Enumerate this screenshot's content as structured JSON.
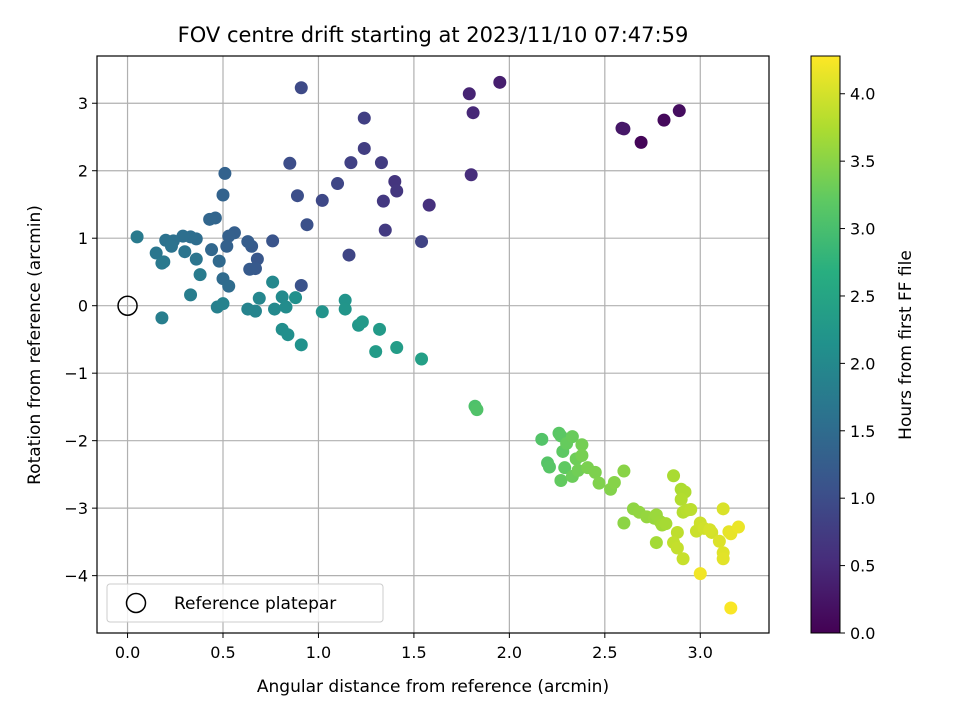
{
  "chart_data": {
    "type": "scatter",
    "title": "FOV centre drift starting at 2023/11/10 07:47:59",
    "xlabel": "Angular distance from reference (arcmin)",
    "ylabel": "Rotation from reference (arcmin)",
    "xlim": [
      -0.16,
      3.36
    ],
    "ylim": [
      -4.85,
      3.7
    ],
    "xticks": [
      0.0,
      0.5,
      1.0,
      1.5,
      2.0,
      2.5,
      3.0
    ],
    "xtick_labels": [
      "0.0",
      "0.5",
      "1.0",
      "1.5",
      "2.0",
      "2.5",
      "3.0"
    ],
    "yticks": [
      3,
      2,
      1,
      0,
      -1,
      -2,
      -3,
      -4
    ],
    "ytick_labels": [
      "3",
      "2",
      "1",
      "0",
      "−1",
      "−2",
      "−3",
      "−4"
    ],
    "grid": true,
    "legend": {
      "placement": "lower-left",
      "entries": [
        {
          "label": "Reference platepar",
          "marker": "hollow-circle"
        }
      ]
    },
    "reference_point": {
      "x": 0,
      "y": 0
    },
    "colorbar": {
      "label": "Hours from first FF file",
      "colormap": "viridis",
      "range": [
        0.0,
        4.28
      ],
      "ticks": [
        0.0,
        0.5,
        1.0,
        1.5,
        2.0,
        2.5,
        3.0,
        3.5,
        4.0
      ],
      "tick_labels": [
        "0.0",
        "0.5",
        "1.0",
        "1.5",
        "2.0",
        "2.5",
        "3.0",
        "3.5",
        "4.0"
      ]
    },
    "points": [
      {
        "x": 2.69,
        "y": 2.42,
        "c": 0.05
      },
      {
        "x": 2.81,
        "y": 2.75,
        "c": 0.1
      },
      {
        "x": 2.89,
        "y": 2.89,
        "c": 0.15
      },
      {
        "x": 2.59,
        "y": 2.63,
        "c": 0.25
      },
      {
        "x": 2.6,
        "y": 2.62,
        "c": 0.28
      },
      {
        "x": 1.95,
        "y": 3.31,
        "c": 0.35
      },
      {
        "x": 1.79,
        "y": 3.14,
        "c": 0.42
      },
      {
        "x": 1.81,
        "y": 2.86,
        "c": 0.48
      },
      {
        "x": 1.8,
        "y": 1.94,
        "c": 0.55
      },
      {
        "x": 1.58,
        "y": 1.49,
        "c": 0.6
      },
      {
        "x": 1.4,
        "y": 1.84,
        "c": 0.65
      },
      {
        "x": 1.41,
        "y": 1.7,
        "c": 0.68
      },
      {
        "x": 1.34,
        "y": 1.55,
        "c": 0.7
      },
      {
        "x": 1.35,
        "y": 1.12,
        "c": 0.72
      },
      {
        "x": 1.33,
        "y": 2.12,
        "c": 0.75
      },
      {
        "x": 1.24,
        "y": 2.33,
        "c": 0.78
      },
      {
        "x": 1.24,
        "y": 2.78,
        "c": 0.8
      },
      {
        "x": 1.17,
        "y": 2.12,
        "c": 0.82
      },
      {
        "x": 1.54,
        "y": 0.95,
        "c": 0.85
      },
      {
        "x": 1.16,
        "y": 0.75,
        "c": 0.88
      },
      {
        "x": 1.1,
        "y": 1.81,
        "c": 0.9
      },
      {
        "x": 1.02,
        "y": 1.56,
        "c": 0.92
      },
      {
        "x": 0.91,
        "y": 3.23,
        "c": 0.95
      },
      {
        "x": 0.85,
        "y": 2.11,
        "c": 1.0
      },
      {
        "x": 0.89,
        "y": 1.63,
        "c": 1.02
      },
      {
        "x": 0.94,
        "y": 1.2,
        "c": 1.05
      },
      {
        "x": 0.91,
        "y": 0.3,
        "c": 1.08
      },
      {
        "x": 0.76,
        "y": 0.96,
        "c": 1.1
      },
      {
        "x": 0.68,
        "y": 0.69,
        "c": 1.15
      },
      {
        "x": 0.67,
        "y": 0.55,
        "c": 1.18
      },
      {
        "x": 0.64,
        "y": 0.54,
        "c": 1.2
      },
      {
        "x": 0.65,
        "y": 0.88,
        "c": 1.22
      },
      {
        "x": 0.63,
        "y": 0.95,
        "c": 1.25
      },
      {
        "x": 0.56,
        "y": 1.08,
        "c": 1.28
      },
      {
        "x": 0.53,
        "y": 1.03,
        "c": 1.3
      },
      {
        "x": 0.52,
        "y": 0.88,
        "c": 1.32
      },
      {
        "x": 0.51,
        "y": 1.96,
        "c": 1.34
      },
      {
        "x": 0.5,
        "y": 1.64,
        "c": 1.36
      },
      {
        "x": 0.46,
        "y": 1.3,
        "c": 1.38
      },
      {
        "x": 0.43,
        "y": 1.28,
        "c": 1.4
      },
      {
        "x": 0.44,
        "y": 0.83,
        "c": 1.42
      },
      {
        "x": 0.48,
        "y": 0.66,
        "c": 1.45
      },
      {
        "x": 0.5,
        "y": 0.4,
        "c": 1.48
      },
      {
        "x": 0.53,
        "y": 0.29,
        "c": 1.5
      },
      {
        "x": 0.36,
        "y": 0.99,
        "c": 1.52
      },
      {
        "x": 0.33,
        "y": 1.02,
        "c": 1.54
      },
      {
        "x": 0.29,
        "y": 1.03,
        "c": 1.56
      },
      {
        "x": 0.24,
        "y": 0.96,
        "c": 1.58
      },
      {
        "x": 0.2,
        "y": 0.97,
        "c": 1.6
      },
      {
        "x": 0.23,
        "y": 0.88,
        "c": 1.62
      },
      {
        "x": 0.3,
        "y": 0.8,
        "c": 1.64
      },
      {
        "x": 0.36,
        "y": 0.69,
        "c": 1.66
      },
      {
        "x": 0.15,
        "y": 0.78,
        "c": 1.68
      },
      {
        "x": 0.19,
        "y": 0.65,
        "c": 1.7
      },
      {
        "x": 0.18,
        "y": 0.63,
        "c": 1.72
      },
      {
        "x": 0.05,
        "y": 1.02,
        "c": 1.74
      },
      {
        "x": 0.38,
        "y": 0.46,
        "c": 1.76
      },
      {
        "x": 0.33,
        "y": 0.16,
        "c": 1.8
      },
      {
        "x": 0.18,
        "y": -0.18,
        "c": 1.82
      },
      {
        "x": 0.47,
        "y": -0.02,
        "c": 1.85
      },
      {
        "x": 0.5,
        "y": 0.03,
        "c": 1.88
      },
      {
        "x": 0.63,
        "y": -0.05,
        "c": 1.9
      },
      {
        "x": 0.67,
        "y": -0.08,
        "c": 1.92
      },
      {
        "x": 0.69,
        "y": 0.11,
        "c": 1.95
      },
      {
        "x": 0.76,
        "y": 0.35,
        "c": 1.98
      },
      {
        "x": 0.77,
        "y": -0.05,
        "c": 2.0
      },
      {
        "x": 0.81,
        "y": 0.13,
        "c": 2.02
      },
      {
        "x": 0.83,
        "y": -0.02,
        "c": 2.05
      },
      {
        "x": 0.81,
        "y": -0.35,
        "c": 2.08
      },
      {
        "x": 0.84,
        "y": -0.43,
        "c": 2.1
      },
      {
        "x": 0.88,
        "y": 0.12,
        "c": 2.12
      },
      {
        "x": 0.91,
        "y": -0.58,
        "c": 2.15
      },
      {
        "x": 1.02,
        "y": -0.09,
        "c": 2.18
      },
      {
        "x": 1.14,
        "y": 0.08,
        "c": 2.2
      },
      {
        "x": 1.14,
        "y": -0.05,
        "c": 2.22
      },
      {
        "x": 1.21,
        "y": -0.29,
        "c": 2.25
      },
      {
        "x": 1.23,
        "y": -0.24,
        "c": 2.28
      },
      {
        "x": 1.32,
        "y": -0.35,
        "c": 2.3
      },
      {
        "x": 1.3,
        "y": -0.68,
        "c": 2.32
      },
      {
        "x": 1.41,
        "y": -0.62,
        "c": 2.35
      },
      {
        "x": 1.54,
        "y": -0.79,
        "c": 2.4
      },
      {
        "x": 1.82,
        "y": -1.49,
        "c": 3.05
      },
      {
        "x": 1.83,
        "y": -1.54,
        "c": 3.08
      },
      {
        "x": 2.17,
        "y": -1.98,
        "c": 3.1
      },
      {
        "x": 2.2,
        "y": -2.33,
        "c": 3.12
      },
      {
        "x": 2.21,
        "y": -2.39,
        "c": 3.14
      },
      {
        "x": 2.26,
        "y": -1.89,
        "c": 3.16
      },
      {
        "x": 2.27,
        "y": -1.93,
        "c": 3.18
      },
      {
        "x": 2.28,
        "y": -2.16,
        "c": 3.2
      },
      {
        "x": 2.29,
        "y": -2.4,
        "c": 3.22
      },
      {
        "x": 2.27,
        "y": -2.59,
        "c": 3.24
      },
      {
        "x": 2.3,
        "y": -2.04,
        "c": 3.26
      },
      {
        "x": 2.33,
        "y": -1.94,
        "c": 3.28
      },
      {
        "x": 2.33,
        "y": -2.53,
        "c": 3.3
      },
      {
        "x": 2.35,
        "y": -2.27,
        "c": 3.32
      },
      {
        "x": 2.36,
        "y": -2.44,
        "c": 3.34
      },
      {
        "x": 2.38,
        "y": -2.06,
        "c": 3.36
      },
      {
        "x": 2.38,
        "y": -2.22,
        "c": 3.38
      },
      {
        "x": 2.41,
        "y": -2.4,
        "c": 3.4
      },
      {
        "x": 2.45,
        "y": -2.47,
        "c": 3.42
      },
      {
        "x": 2.47,
        "y": -2.63,
        "c": 3.44
      },
      {
        "x": 2.53,
        "y": -2.72,
        "c": 3.46
      },
      {
        "x": 2.55,
        "y": -2.62,
        "c": 3.48
      },
      {
        "x": 2.6,
        "y": -2.45,
        "c": 3.5
      },
      {
        "x": 2.6,
        "y": -3.22,
        "c": 3.52
      },
      {
        "x": 2.65,
        "y": -3.01,
        "c": 3.54
      },
      {
        "x": 2.68,
        "y": -3.06,
        "c": 3.56
      },
      {
        "x": 2.72,
        "y": -3.13,
        "c": 3.58
      },
      {
        "x": 2.76,
        "y": -3.15,
        "c": 3.6
      },
      {
        "x": 2.77,
        "y": -3.1,
        "c": 3.62
      },
      {
        "x": 2.79,
        "y": -3.2,
        "c": 3.64
      },
      {
        "x": 2.8,
        "y": -3.25,
        "c": 3.66
      },
      {
        "x": 2.77,
        "y": -3.51,
        "c": 3.68
      },
      {
        "x": 2.82,
        "y": -3.23,
        "c": 3.7
      },
      {
        "x": 2.86,
        "y": -2.52,
        "c": 3.72
      },
      {
        "x": 2.9,
        "y": -2.72,
        "c": 3.74
      },
      {
        "x": 2.92,
        "y": -2.76,
        "c": 3.76
      },
      {
        "x": 2.9,
        "y": -2.87,
        "c": 3.78
      },
      {
        "x": 2.91,
        "y": -3.06,
        "c": 3.8
      },
      {
        "x": 2.93,
        "y": -3.03,
        "c": 3.82
      },
      {
        "x": 2.95,
        "y": -3.02,
        "c": 3.84
      },
      {
        "x": 2.88,
        "y": -3.36,
        "c": 3.86
      },
      {
        "x": 2.86,
        "y": -3.51,
        "c": 3.88
      },
      {
        "x": 2.88,
        "y": -3.59,
        "c": 3.9
      },
      {
        "x": 2.91,
        "y": -3.75,
        "c": 3.92
      },
      {
        "x": 2.98,
        "y": -3.34,
        "c": 3.94
      },
      {
        "x": 3.0,
        "y": -3.22,
        "c": 3.96
      },
      {
        "x": 3.02,
        "y": -3.3,
        "c": 3.98
      },
      {
        "x": 3.06,
        "y": -3.36,
        "c": 4.0
      },
      {
        "x": 3.05,
        "y": -3.32,
        "c": 4.02
      },
      {
        "x": 3.12,
        "y": -3.01,
        "c": 4.04
      },
      {
        "x": 3.1,
        "y": -3.49,
        "c": 4.06
      },
      {
        "x": 3.12,
        "y": -3.66,
        "c": 4.08
      },
      {
        "x": 3.12,
        "y": -3.75,
        "c": 4.1
      },
      {
        "x": 3.15,
        "y": -3.35,
        "c": 4.12
      },
      {
        "x": 3.16,
        "y": -3.38,
        "c": 4.14
      },
      {
        "x": 3.2,
        "y": -3.28,
        "c": 4.16
      },
      {
        "x": 3.0,
        "y": -3.97,
        "c": 4.2
      },
      {
        "x": 3.16,
        "y": -4.48,
        "c": 4.25
      }
    ]
  }
}
